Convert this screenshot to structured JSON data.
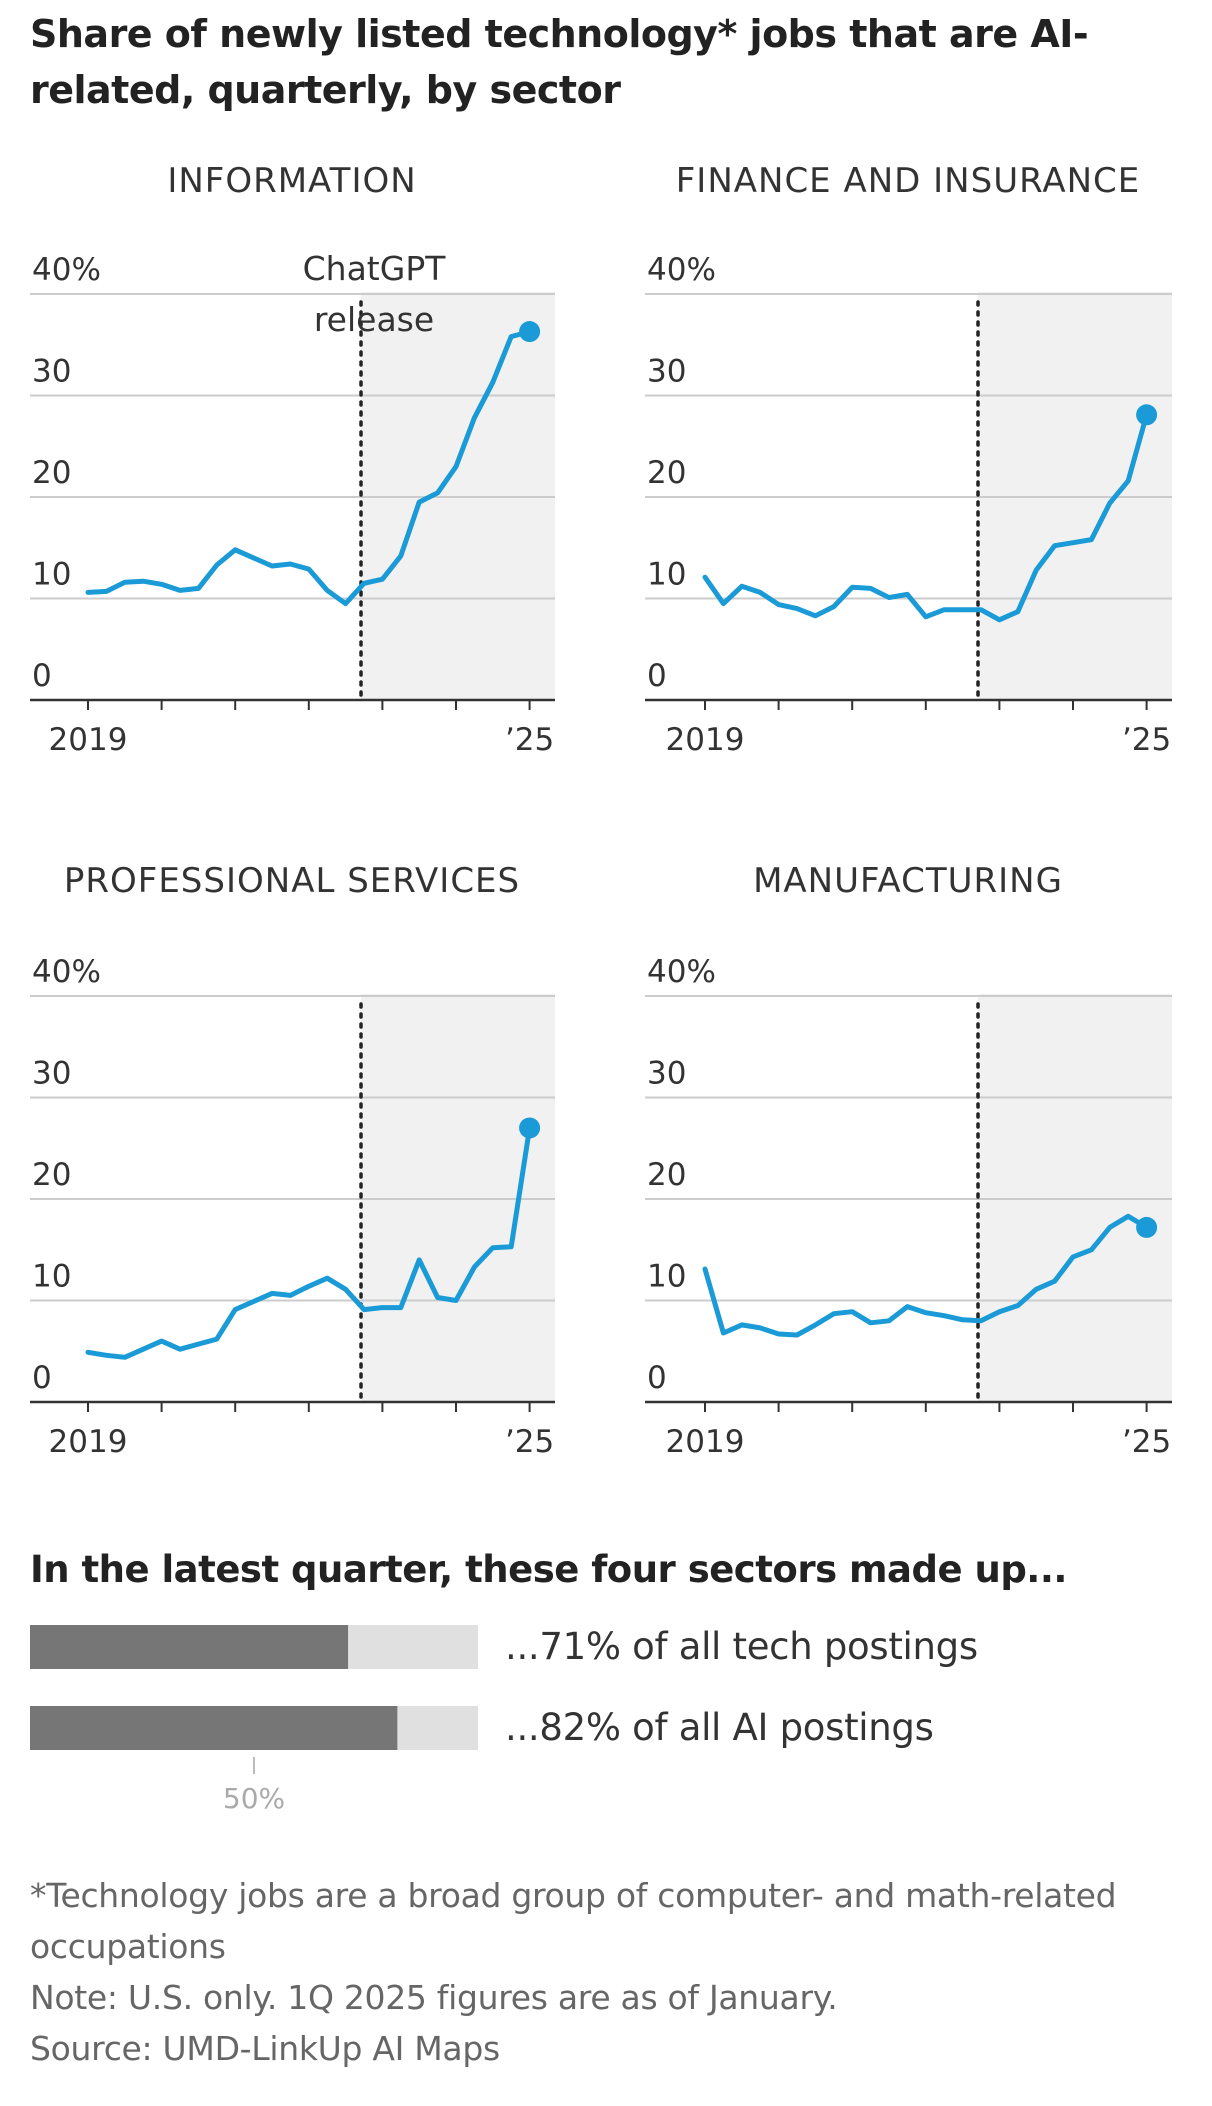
{
  "title": "Share of newly listed technology* jobs that are AI-related, quarterly, by sector",
  "colors": {
    "line": "#1a9ad6",
    "shade": "#f1f1f1",
    "grid": "#cccccc",
    "axis": "#333333",
    "bar": "#767676",
    "bar_track": "#e0e0e0",
    "text": "#333333",
    "muted": "#666666"
  },
  "annotation": {
    "line1": "ChatGPT",
    "line2": "release"
  },
  "chart_data": [
    {
      "type": "line",
      "title": "INFORMATION",
      "y_ticks": [
        "40%",
        "30",
        "20",
        "10",
        "0"
      ],
      "ylim": [
        0,
        40
      ],
      "x_start_label": "2019",
      "x_end_label": "’25",
      "release_quarter_index": 15,
      "values": [
        10.6,
        10.7,
        11.6,
        11.7,
        11.4,
        10.8,
        11.0,
        13.3,
        14.8,
        14.0,
        13.2,
        13.4,
        12.9,
        10.8,
        9.5,
        11.5,
        11.9,
        14.2,
        19.5,
        20.4,
        23.0,
        27.8,
        31.3,
        35.8,
        36.3
      ]
    },
    {
      "type": "line",
      "title": "FINANCE AND INSURANCE",
      "y_ticks": [
        "40%",
        "30",
        "20",
        "10",
        "0"
      ],
      "ylim": [
        0,
        40
      ],
      "x_start_label": "2019",
      "x_end_label": "’25",
      "release_quarter_index": 15,
      "values": [
        12.1,
        9.5,
        11.2,
        10.6,
        9.4,
        9.0,
        8.3,
        9.2,
        11.1,
        11.0,
        10.1,
        10.4,
        8.2,
        8.9,
        8.9,
        8.9,
        7.9,
        8.7,
        12.8,
        15.2,
        15.5,
        15.8,
        19.4,
        21.6,
        28.1
      ]
    },
    {
      "type": "line",
      "title": "PROFESSIONAL SERVICES",
      "y_ticks": [
        "40%",
        "30",
        "20",
        "10",
        "0"
      ],
      "ylim": [
        0,
        40
      ],
      "x_start_label": "2019",
      "x_end_label": "’25",
      "release_quarter_index": 15,
      "values": [
        4.9,
        4.6,
        4.4,
        5.2,
        6.0,
        5.2,
        5.7,
        6.2,
        9.1,
        9.9,
        10.7,
        10.5,
        11.4,
        12.2,
        11.1,
        9.1,
        9.3,
        9.3,
        14.0,
        10.3,
        10.0,
        13.3,
        15.2,
        15.3,
        27.0
      ]
    },
    {
      "type": "line",
      "title": "MANUFACTURING",
      "y_ticks": [
        "40%",
        "30",
        "20",
        "10",
        "0"
      ],
      "ylim": [
        0,
        40
      ],
      "x_start_label": "2019",
      "x_end_label": "’25",
      "release_quarter_index": 15,
      "values": [
        13.1,
        6.8,
        7.6,
        7.3,
        6.7,
        6.6,
        7.6,
        8.7,
        8.9,
        7.8,
        8.0,
        9.4,
        8.8,
        8.5,
        8.1,
        8.0,
        8.9,
        9.5,
        11.1,
        11.9,
        14.3,
        15.0,
        17.2,
        18.3,
        17.2
      ]
    },
    {
      "type": "bar",
      "title": "In the latest quarter, these four sectors made up...",
      "orientation": "horizontal",
      "categories": [
        "...71% of all tech postings",
        "...82% of all AI postings"
      ],
      "values": [
        71,
        82
      ],
      "xlim": [
        0,
        100
      ],
      "reference_label": "50%",
      "reference_value": 50
    }
  ],
  "footnotes": {
    "asterisk_line1": "*Technology jobs are a broad group of computer- and math-related",
    "asterisk_line2": "occupations",
    "note": "Note: U.S. only. 1Q 2025 figures are as of January.",
    "source": "Source: UMD-LinkUp AI Maps"
  }
}
